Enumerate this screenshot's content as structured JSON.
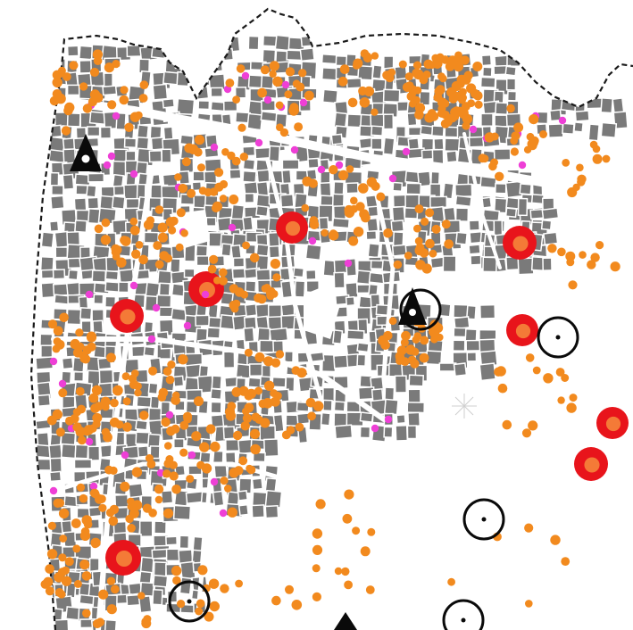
{
  "map": {
    "colors": {
      "background": "#ffffff",
      "buildings": "#7a7a7a",
      "boundary": "#1a1a1a",
      "point_orange": "#f28a1e",
      "point_magenta": "#ee3fd6",
      "hotspot_outer": "#e8141b",
      "hotspot_inner": "#f47a37",
      "marker": "#0a0a0a",
      "rose": "#cfcfcf"
    },
    "boundary_style": "dashed",
    "layers": [
      "building-footprints",
      "point-events-orange",
      "point-events-magenta",
      "hotspot-circles",
      "ring-markers",
      "triangle-markers"
    ]
  }
}
